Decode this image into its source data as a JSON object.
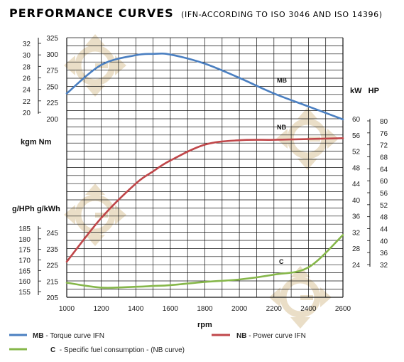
{
  "header": {
    "title": "PERFORMANCE CURVES",
    "subtitle": "(IFN-ACCORDING TO ISO 3046 AND ISO 14396)"
  },
  "axis_units": {
    "left_top": "kgm  Nm",
    "left_bottom": "g/HPh g/kWh",
    "right_top": "kW   HP",
    "x": "rpm"
  },
  "legend": [
    {
      "code": "MB",
      "text": " - Torque curve IFN",
      "color": "#4a7fc1"
    },
    {
      "code": "NB",
      "text": " - Power curve IFN",
      "color": "#c0474a"
    },
    {
      "code": "C",
      "text": "  - Specific fuel consumption - (NB curve)",
      "color": "#86b74a"
    }
  ],
  "chart_data": {
    "type": "line",
    "x": [
      1000,
      1200,
      1400,
      1500,
      1600,
      1800,
      2000,
      2200,
      2400,
      2600
    ],
    "x_ticks": [
      "1000",
      "1200",
      "1400",
      "1600",
      "1800",
      "2000",
      "2200",
      "2400",
      "2600"
    ],
    "xlim": [
      1000,
      2600
    ],
    "xlabel": "rpm",
    "axes": {
      "torque_nm": {
        "ticks": [
          "325",
          "300",
          "275",
          "250",
          "225",
          "200"
        ],
        "range": [
          200,
          325
        ]
      },
      "torque_kgm": {
        "ticks": [
          "32",
          "30",
          "28",
          "26",
          "24",
          "22",
          "20"
        ],
        "range": [
          20,
          33.1
        ]
      },
      "power_kw": {
        "ticks": [
          "60",
          "56",
          "52",
          "48",
          "44",
          "40",
          "36",
          "32",
          "28",
          "24"
        ],
        "range": [
          24,
          60
        ]
      },
      "power_hp": {
        "ticks": [
          "80",
          "76",
          "72",
          "68",
          "64",
          "60",
          "56",
          "52",
          "48",
          "44",
          "40",
          "36",
          "32"
        ],
        "range": [
          32,
          80
        ]
      },
      "fuel_g_kwh": {
        "ticks": [
          "245",
          "235",
          "225",
          "215",
          "205"
        ],
        "range": [
          205,
          250
        ]
      },
      "fuel_g_hph": {
        "ticks": [
          "185",
          "180",
          "175",
          "170",
          "165",
          "160",
          "155"
        ],
        "range": [
          151,
          185
        ]
      }
    },
    "series": [
      {
        "name": "MB",
        "axis": "torque_nm",
        "values": [
          239,
          283,
          298,
          300,
          299,
          285,
          263,
          239,
          219,
          199
        ]
      },
      {
        "name": "NB",
        "axis": "power_kw",
        "values": [
          24.7,
          35.5,
          44.0,
          47.0,
          49.7,
          53.6,
          54.7,
          54.8,
          55.0,
          55.2
        ]
      },
      {
        "name": "C",
        "axis": "fuel_g_kwh",
        "values": [
          214,
          211,
          211.5,
          212,
          212.5,
          214.5,
          216,
          219,
          223.5,
          243.5
        ]
      }
    ]
  }
}
